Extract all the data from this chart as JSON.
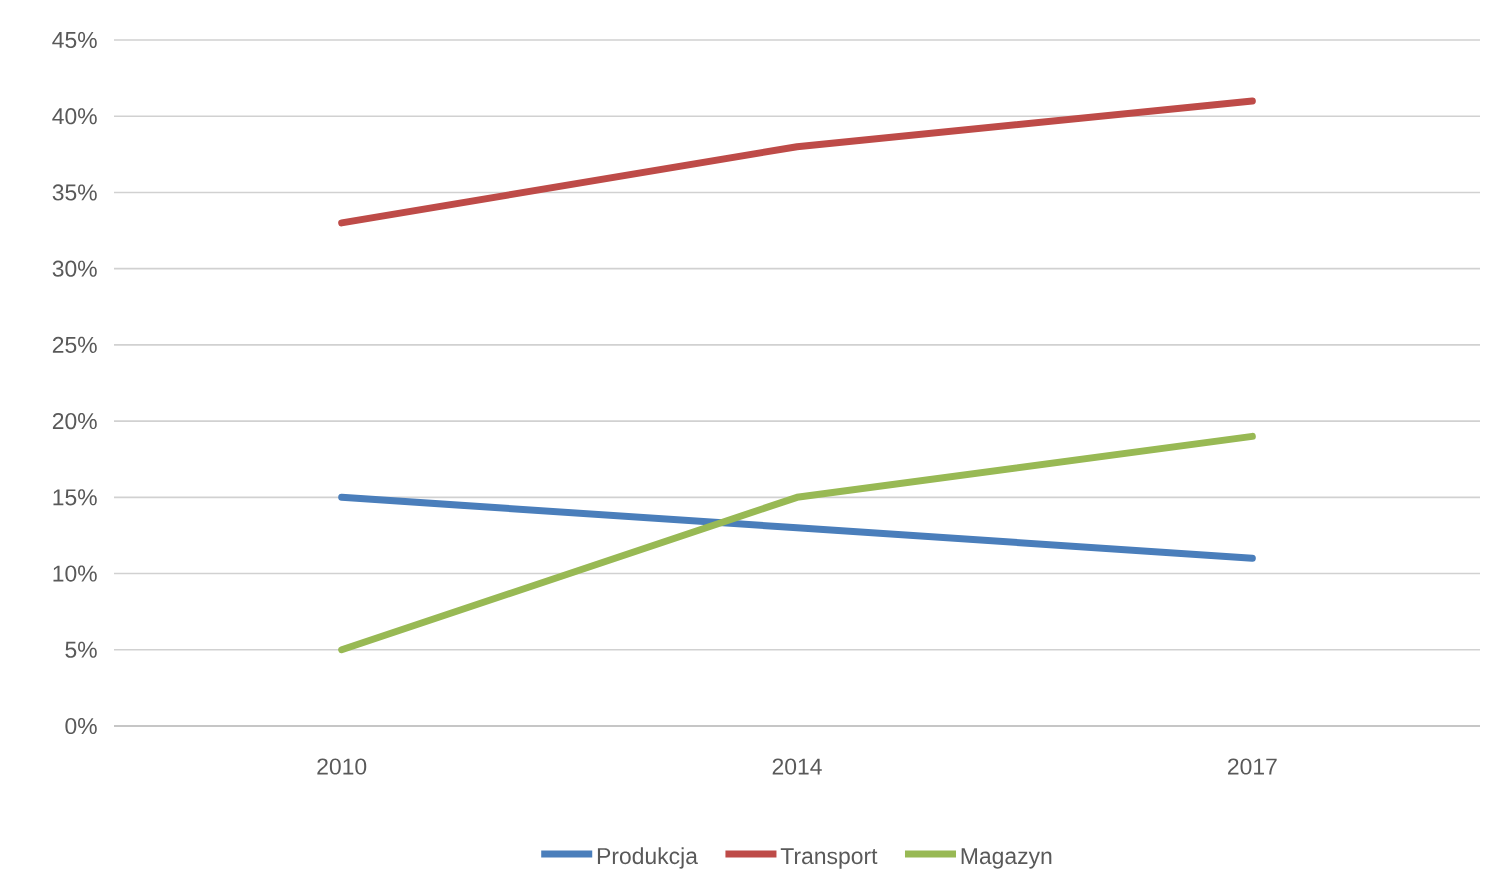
{
  "chart_data": {
    "type": "line",
    "categories": [
      "2010",
      "2014",
      "2017"
    ],
    "series": [
      {
        "name": "Produkcja",
        "color": "#4a7ebb",
        "values": [
          15,
          13,
          11
        ]
      },
      {
        "name": "Transport",
        "color": "#be4b48",
        "values": [
          33,
          38,
          41
        ]
      },
      {
        "name": "Magazyn",
        "color": "#98b954",
        "values": [
          5,
          15,
          19
        ]
      }
    ],
    "ylim": [
      0,
      45
    ],
    "yticks": [
      {
        "value": 0,
        "label": "0%"
      },
      {
        "value": 5,
        "label": "5%"
      },
      {
        "value": 10,
        "label": "10%"
      },
      {
        "value": 15,
        "label": "15%"
      },
      {
        "value": 20,
        "label": "20%"
      },
      {
        "value": 25,
        "label": "25%"
      },
      {
        "value": 30,
        "label": "30%"
      },
      {
        "value": 35,
        "label": "35%"
      },
      {
        "value": 40,
        "label": "40%"
      },
      {
        "value": 45,
        "label": "45%"
      }
    ],
    "grid": "y",
    "legend": "bottom",
    "marker": "none",
    "line_style": "solid"
  }
}
